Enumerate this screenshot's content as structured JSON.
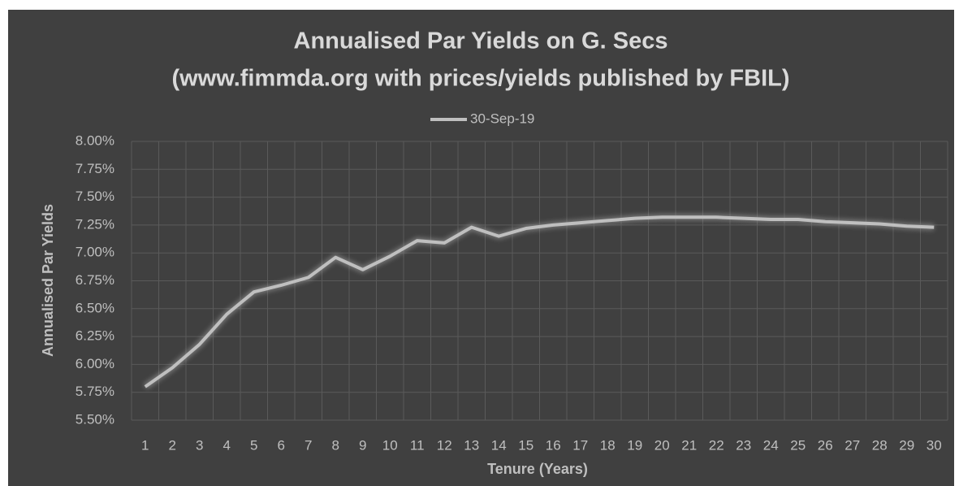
{
  "chart_data": {
    "type": "line",
    "title": "Annualised Par Yields on G. Secs",
    "subtitle": "(www.fimmda.org with prices/yields published by FBIL)",
    "x_label": "Tenure (Years)",
    "y_label": "Annualised Par Yields",
    "categories": [
      1,
      2,
      3,
      4,
      5,
      6,
      7,
      8,
      9,
      10,
      11,
      12,
      13,
      14,
      15,
      16,
      17,
      18,
      19,
      20,
      21,
      22,
      23,
      24,
      25,
      26,
      27,
      28,
      29,
      30
    ],
    "series": [
      {
        "name": "30-Sep-19",
        "color": "#bfbfbf",
        "values": [
          5.8,
          5.97,
          6.18,
          6.45,
          6.65,
          6.71,
          6.78,
          6.96,
          6.85,
          6.97,
          7.11,
          7.09,
          7.23,
          7.15,
          7.22,
          7.25,
          7.27,
          7.29,
          7.31,
          7.32,
          7.32,
          7.32,
          7.31,
          7.3,
          7.3,
          7.28,
          7.27,
          7.26,
          7.24,
          7.23
        ]
      }
    ],
    "ylim": [
      5.5,
      8
    ],
    "yticks": [
      {
        "value": 5.5,
        "label": "5.50%"
      },
      {
        "value": 5.75,
        "label": "5.75%"
      },
      {
        "value": 6,
        "label": "6.00%"
      },
      {
        "value": 6.25,
        "label": "6.25%"
      },
      {
        "value": 6.5,
        "label": "6.50%"
      },
      {
        "value": 6.75,
        "label": "6.75%"
      },
      {
        "value": 7,
        "label": "7.00%"
      },
      {
        "value": 7.25,
        "label": "7.25%"
      },
      {
        "value": 7.5,
        "label": "7.50%"
      },
      {
        "value": 7.75,
        "label": "7.75%"
      },
      {
        "value": 8,
        "label": "8.00%"
      }
    ],
    "grid": true,
    "legend": "top"
  }
}
